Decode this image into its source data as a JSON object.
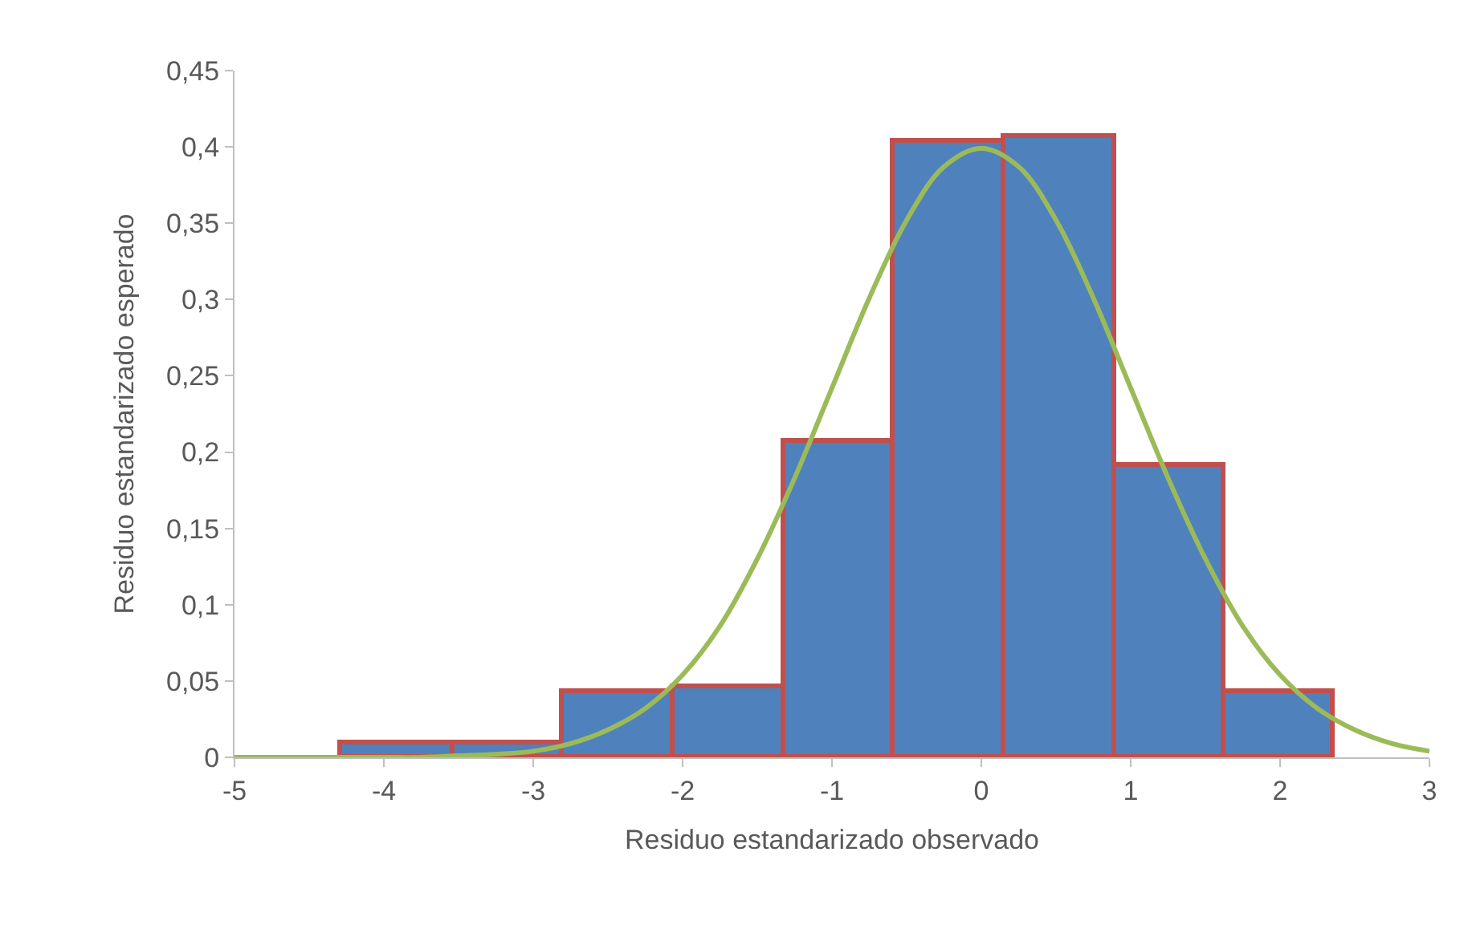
{
  "chart_data": {
    "type": "histogram",
    "xlabel": "Residuo estandarizado observado",
    "ylabel": "Residuo estandarizado esperado",
    "bins": [
      -4.29,
      -3.54,
      -2.81,
      -2.06,
      -1.32,
      -0.59,
      0.15,
      0.89,
      1.62,
      2.35
    ],
    "values": [
      0.009,
      0.009,
      0.043,
      0.046,
      0.207,
      0.404,
      0.407,
      0.191,
      0.043
    ],
    "color": "#4f81bd",
    "series": [
      {
        "type": "line",
        "color": "#9bbb59",
        "x": [
          -5,
          -4.75,
          -4.5,
          -4.25,
          -4,
          -3.75,
          -3.5,
          -3.25,
          -3,
          -2.75,
          -2.5,
          -2.25,
          -2,
          -1.75,
          -1.5,
          -1.25,
          -1,
          -0.75,
          -0.5,
          -0.25,
          0,
          0.25,
          0.5,
          0.75,
          1,
          1.25,
          1.5,
          1.75,
          2,
          2.25,
          2.5,
          2.75,
          3
        ],
        "values": [
          0,
          0,
          0,
          0,
          0,
          0,
          0.001,
          0.002,
          0.004,
          0.009,
          0.018,
          0.032,
          0.054,
          0.086,
          0.13,
          0.183,
          0.242,
          0.301,
          0.352,
          0.387,
          0.399,
          0.387,
          0.352,
          0.301,
          0.242,
          0.183,
          0.13,
          0.086,
          0.054,
          0.032,
          0.018,
          0.009,
          0.004
        ]
      }
    ],
    "xlim": [
      -5,
      3
    ],
    "xticks": [
      -5,
      -4,
      -3,
      -2,
      -1,
      0,
      1,
      2,
      3
    ],
    "ylim": [
      0,
      0.45
    ],
    "yticks": [
      0,
      {
        "value": 0.05,
        "label": "0,05"
      },
      {
        "value": 0.1,
        "label": "0,1"
      },
      {
        "value": 0.15,
        "label": "0,15"
      },
      {
        "value": 0.2,
        "label": "0,2"
      },
      {
        "value": 0.25,
        "label": "0,25"
      },
      {
        "value": 0.3,
        "label": "0,3"
      },
      {
        "value": 0.35,
        "label": "0,35"
      },
      {
        "value": 0.4,
        "label": "0,4"
      },
      {
        "value": 0.45,
        "label": "0,45"
      }
    ]
  }
}
